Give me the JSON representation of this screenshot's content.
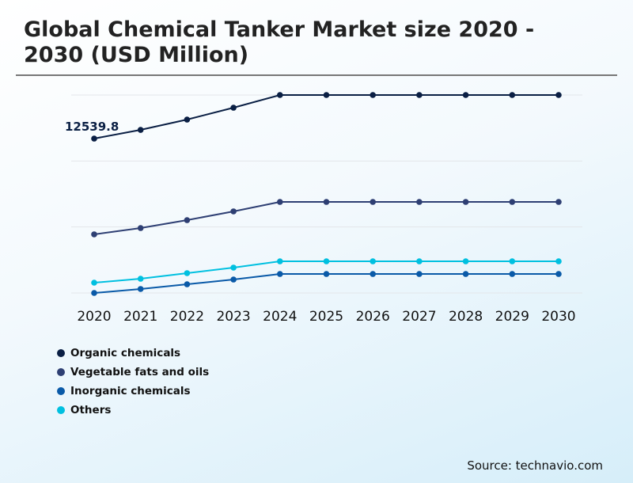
{
  "title": "Global Chemical Tanker Market size 2020 - 2030 (USD Million)",
  "source": "Source: technavio.com",
  "chart_data": {
    "type": "line",
    "title": "Global Chemical Tanker Market size 2020 - 2030 (USD Million)",
    "categories": [
      "2020",
      "2021",
      "2022",
      "2023",
      "2024",
      "2025",
      "2026",
      "2027",
      "2028",
      "2029",
      "2030"
    ],
    "ylim": [
      0,
      16077
    ],
    "grid": true,
    "legend_placement": "bottom-left",
    "annotations": [
      {
        "series": "Organic chemicals",
        "category": "2020",
        "text": "12539.8"
      }
    ],
    "series": [
      {
        "name": "Organic chemicals",
        "color": "#0a1f44",
        "values": [
          12539.8,
          13246,
          14083,
          15048,
          16077,
          16077,
          16077,
          16077,
          16077,
          16077,
          16077
        ]
      },
      {
        "name": "Vegetable fats and oils",
        "color": "#2e3f73",
        "values": [
          4759,
          5273,
          5916,
          6624,
          7395,
          7395,
          7395,
          7395,
          7395,
          7395,
          7395
        ]
      },
      {
        "name": "Inorganic chemicals",
        "color": "#0a5aa8",
        "values": [
          0,
          322,
          707,
          1093,
          1543,
          1543,
          1543,
          1543,
          1543,
          1543,
          1543
        ]
      },
      {
        "name": "Others",
        "color": "#00c0e0",
        "values": [
          836,
          1157,
          1608,
          2058,
          2572,
          2572,
          2572,
          2572,
          2572,
          2572,
          2572
        ]
      }
    ]
  }
}
